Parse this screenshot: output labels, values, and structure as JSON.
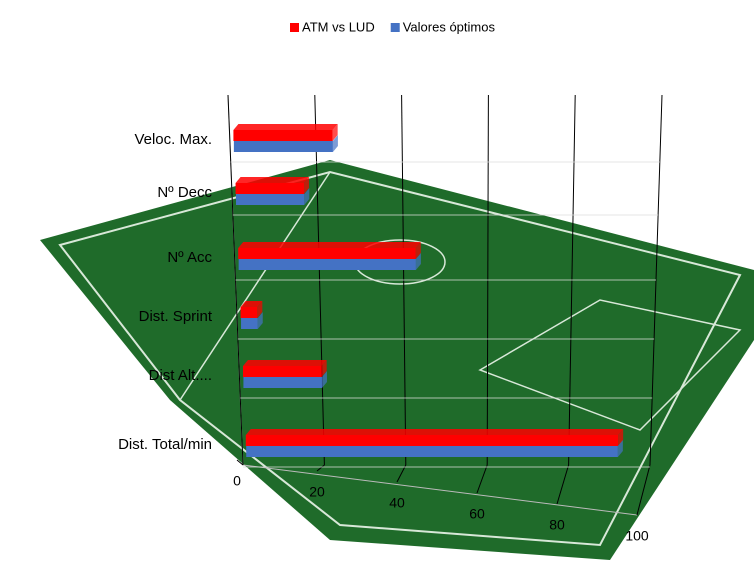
{
  "chart_data": {
    "type": "bar",
    "orientation": "horizontal",
    "categories": [
      "Veloc. Max.",
      "Nº Decc",
      "Nº Acc",
      "Dist. Sprint",
      "Dist Alt....",
      "Dist. Total/min"
    ],
    "series": [
      {
        "name": "ATM vs LUD",
        "color": "#ff0000",
        "values": [
          23,
          16,
          42,
          4,
          19,
          91
        ]
      },
      {
        "name": "Valores óptimos",
        "color": "#4472c4",
        "values": [
          23,
          16,
          42,
          4,
          19,
          91
        ]
      }
    ],
    "xlim": [
      0,
      100
    ],
    "xticks": [
      0,
      20,
      40,
      60,
      80,
      100
    ],
    "grid": true,
    "legend": "top"
  }
}
